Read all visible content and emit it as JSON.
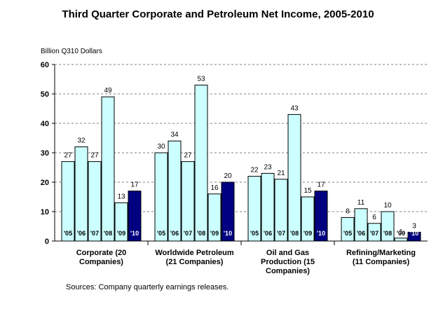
{
  "chart_data": {
    "type": "bar",
    "title": "Third Quarter Corporate and Petroleum Net Income, 2005-2010",
    "ylabel": "Billion Q310 Dollars",
    "source": "Sources: Company quarterly earnings releases.",
    "ylim": [
      0,
      60
    ],
    "yticks": [
      "0",
      "10",
      "20",
      "30",
      "40",
      "50",
      "60"
    ],
    "grid": true,
    "colors": {
      "bar": "#ccffff",
      "highlight": "#000080",
      "border": "#000000",
      "grid": "#808080"
    },
    "groups": [
      {
        "label_lines": [
          "Corporate (20",
          "Companies)"
        ],
        "years": [
          "'05",
          "'06",
          "'07",
          "'08",
          "'09",
          "'10"
        ],
        "values": [
          27,
          32,
          27,
          49,
          13,
          17
        ],
        "labels": [
          "27",
          "32",
          "27",
          "49",
          "13",
          "17"
        ]
      },
      {
        "label_lines": [
          "Worldwide Petroleum",
          "(21 Companies)"
        ],
        "years": [
          "'05",
          "'06",
          "'07",
          "'08",
          "'09",
          "'10"
        ],
        "values": [
          30,
          34,
          27,
          53,
          16,
          20
        ],
        "labels": [
          "30",
          "34",
          "27",
          "53",
          "16",
          "20"
        ]
      },
      {
        "label_lines": [
          "Oil and Gas",
          "Production (15",
          "Companies)"
        ],
        "years": [
          "'05",
          "'06",
          "'07",
          "'08",
          "'09",
          "'10"
        ],
        "values": [
          22,
          23,
          21,
          43,
          15,
          17
        ],
        "labels": [
          "22",
          "23",
          "21",
          "43",
          "15",
          "17"
        ]
      },
      {
        "label_lines": [
          "Refining/Marketing",
          "(11 Companies)"
        ],
        "years": [
          "'05",
          "'06",
          "'07",
          "'08",
          "'09",
          "'10"
        ],
        "values": [
          8,
          11,
          6,
          10,
          1,
          3
        ],
        "labels": [
          "8",
          "11",
          "6",
          "10",
          "1",
          "3"
        ]
      }
    ]
  }
}
